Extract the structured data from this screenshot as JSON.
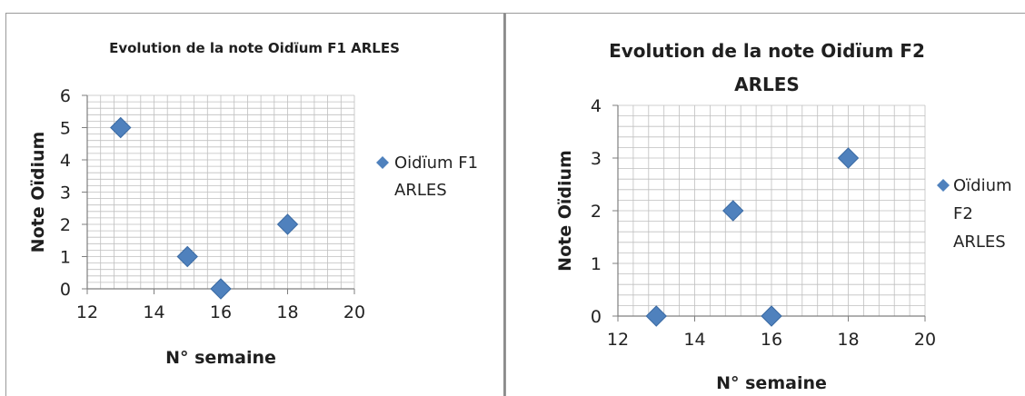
{
  "page": {
    "caption": ""
  },
  "colors": {
    "marker": "#4f81bd",
    "grid": "#bfbfbf",
    "axis": "#7f7f7f"
  },
  "chart_data": [
    {
      "type": "scatter",
      "title_lines": [
        "Evolution de la note Oidïum F1 ARLES"
      ],
      "xlabel": "N° semaine",
      "ylabel": "Note Oïdium",
      "xlim": [
        12,
        20
      ],
      "ylim": [
        0,
        6
      ],
      "xticks": [
        "12",
        "14",
        "16",
        "18",
        "20"
      ],
      "yticks": [
        "0",
        "1",
        "2",
        "3",
        "4",
        "5",
        "6"
      ],
      "grid": true,
      "legend_position": "right",
      "series": [
        {
          "name": "Oidïum F1 ARLES",
          "legend_lines": [
            "Oidïum F1",
            "ARLES"
          ],
          "marker": "diamond",
          "x": [
            13,
            15,
            16,
            18
          ],
          "y": [
            5,
            1,
            0,
            2
          ]
        }
      ]
    },
    {
      "type": "scatter",
      "title_lines": [
        "Evolution de la note Oidïum F2",
        "ARLES"
      ],
      "xlabel": "N° semaine",
      "ylabel": "Note Oïdium",
      "xlim": [
        12,
        20
      ],
      "ylim": [
        0,
        4
      ],
      "xticks": [
        "12",
        "14",
        "16",
        "18",
        "20"
      ],
      "yticks": [
        "0",
        "1",
        "2",
        "3",
        "4"
      ],
      "grid": true,
      "legend_position": "right",
      "series": [
        {
          "name": "Oïdium F2 ARLES",
          "legend_lines": [
            "Oïdium",
            "F2",
            "ARLES"
          ],
          "marker": "diamond",
          "x": [
            13,
            15,
            16,
            18
          ],
          "y": [
            0,
            2,
            0,
            3
          ]
        }
      ]
    }
  ]
}
